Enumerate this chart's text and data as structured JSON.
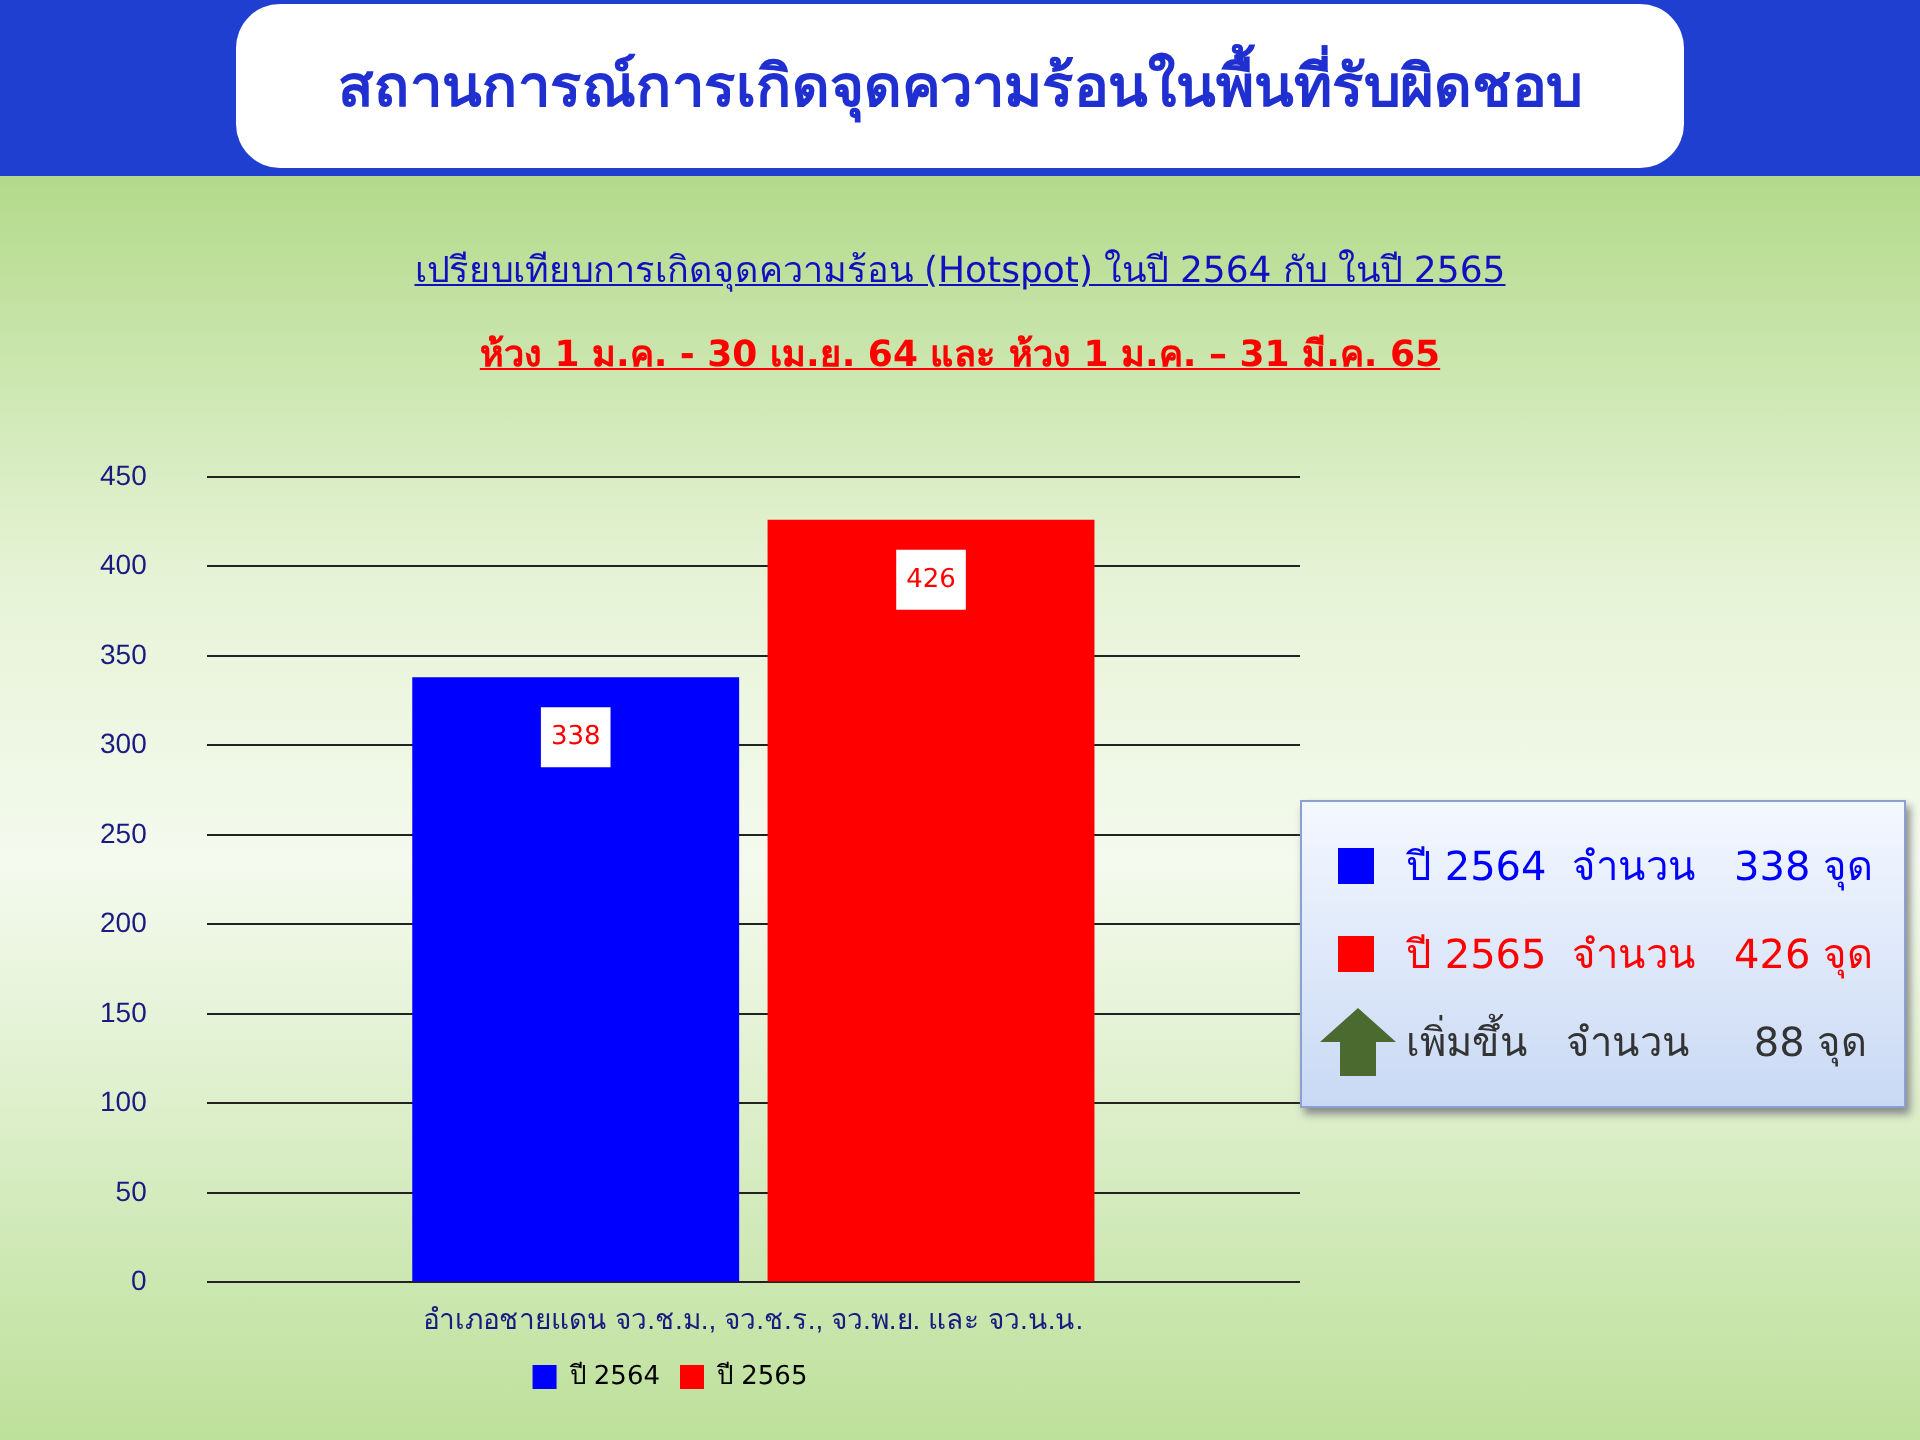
{
  "chart_data": {
    "type": "bar",
    "title": "สถานการณ์การเกิดจุดความร้อนในพื้นที่รับผิดชอบ",
    "subtitle": "เปรียบเทียบการเกิดจุดความร้อน (Hotspot) ในปี 2564 กับ ในปี 2565",
    "annotations": [
      "ห้วง 1 ม.ค. - 30 เม.ย. 64 และ ห้วง 1 ม.ค. – 31 มี.ค. 65",
      "ปี 2564  จำนวน   338 จุด",
      "ปี 2565  จำนวน   426 จุด",
      "เพิ่มขึ้น   จำนวน     88 จุด"
    ],
    "categories": [
      "อำเภอชายแดน จว.ช.ม., จว.ช.ร., จว.พ.ย. และ จว.น.น."
    ],
    "series": [
      {
        "name": "ปี 2564",
        "color": "#0000ff",
        "values": [
          338
        ]
      },
      {
        "name": "ปี 2565",
        "color": "#ff0000",
        "values": [
          426
        ]
      }
    ],
    "ylim": [
      0,
      450
    ],
    "yticks": [
      0,
      50,
      100,
      150,
      200,
      250,
      300,
      350,
      400,
      450
    ],
    "grid": "y",
    "legend": "bottom",
    "data_labels": true
  }
}
